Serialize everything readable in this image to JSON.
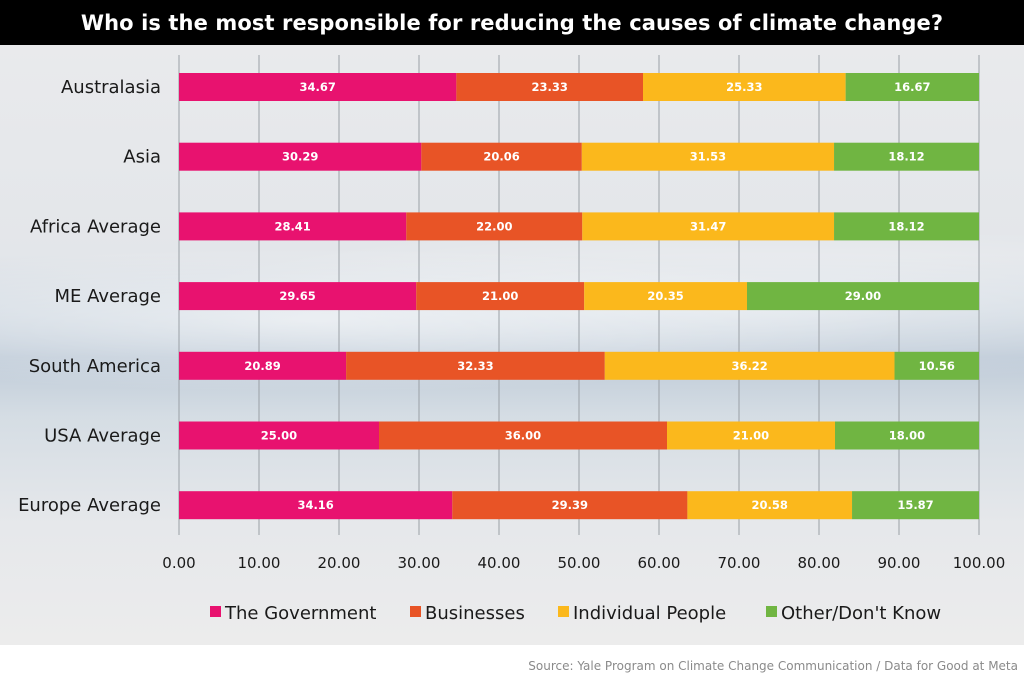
{
  "chart_data": {
    "type": "bar",
    "orientation": "horizontal",
    "stacked": true,
    "title": "Who is the most responsible for reducing the causes of climate change?",
    "categories": [
      "Australasia",
      "Asia",
      "Africa Average",
      "ME Average",
      "South America",
      "USA Average",
      "Europe Average"
    ],
    "series": [
      {
        "name": "The Government",
        "color": "#e8126f",
        "values": [
          34.67,
          30.29,
          28.41,
          29.65,
          20.89,
          25.0,
          34.16
        ]
      },
      {
        "name": "Businesses",
        "color": "#e85426",
        "values": [
          23.33,
          20.06,
          22.0,
          21.0,
          32.33,
          36.0,
          29.39
        ]
      },
      {
        "name": "Individual People",
        "color": "#fbb81c",
        "values": [
          25.33,
          31.53,
          31.47,
          20.35,
          36.22,
          21.0,
          20.58
        ]
      },
      {
        "name": "Other/Don't Know",
        "color": "#70b542",
        "values": [
          16.67,
          18.12,
          18.12,
          29.0,
          10.56,
          18.0,
          15.87
        ]
      }
    ],
    "xlim": [
      0,
      100
    ],
    "xticks": [
      "0.00",
      "10.00",
      "20.00",
      "30.00",
      "40.00",
      "50.00",
      "60.00",
      "70.00",
      "80.00",
      "90.00",
      "100.00"
    ],
    "grid": true,
    "legend": "bottom"
  },
  "source": "Source: Yale Program on Climate Change Communication / Data for Good at Meta"
}
